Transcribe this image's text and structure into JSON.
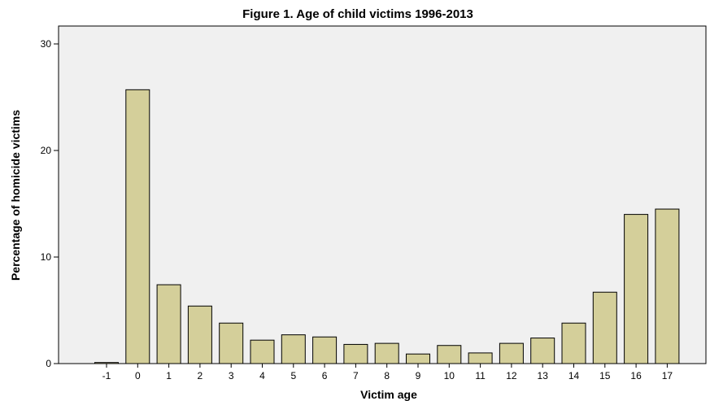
{
  "chart_data": {
    "type": "bar",
    "title": "Figure 1. Age of child victims 1996-2013",
    "xlabel": "Victim age",
    "ylabel": "Percentage of homicide victims",
    "categories": [
      "-1",
      "0",
      "1",
      "2",
      "3",
      "4",
      "5",
      "6",
      "7",
      "8",
      "9",
      "10",
      "11",
      "12",
      "13",
      "14",
      "15",
      "16",
      "17"
    ],
    "values": [
      0.1,
      25.7,
      7.4,
      5.4,
      3.8,
      2.2,
      2.7,
      2.5,
      1.8,
      1.9,
      0.9,
      1.7,
      1.0,
      1.9,
      2.4,
      3.8,
      6.7,
      14.0,
      14.5
    ],
    "yticks": [
      0,
      10,
      20,
      30
    ],
    "ylim": [
      0,
      31
    ],
    "grid": false,
    "legend": "none",
    "colors": {
      "bar": "#d4cf9a",
      "background": "#f0f0f0"
    }
  }
}
